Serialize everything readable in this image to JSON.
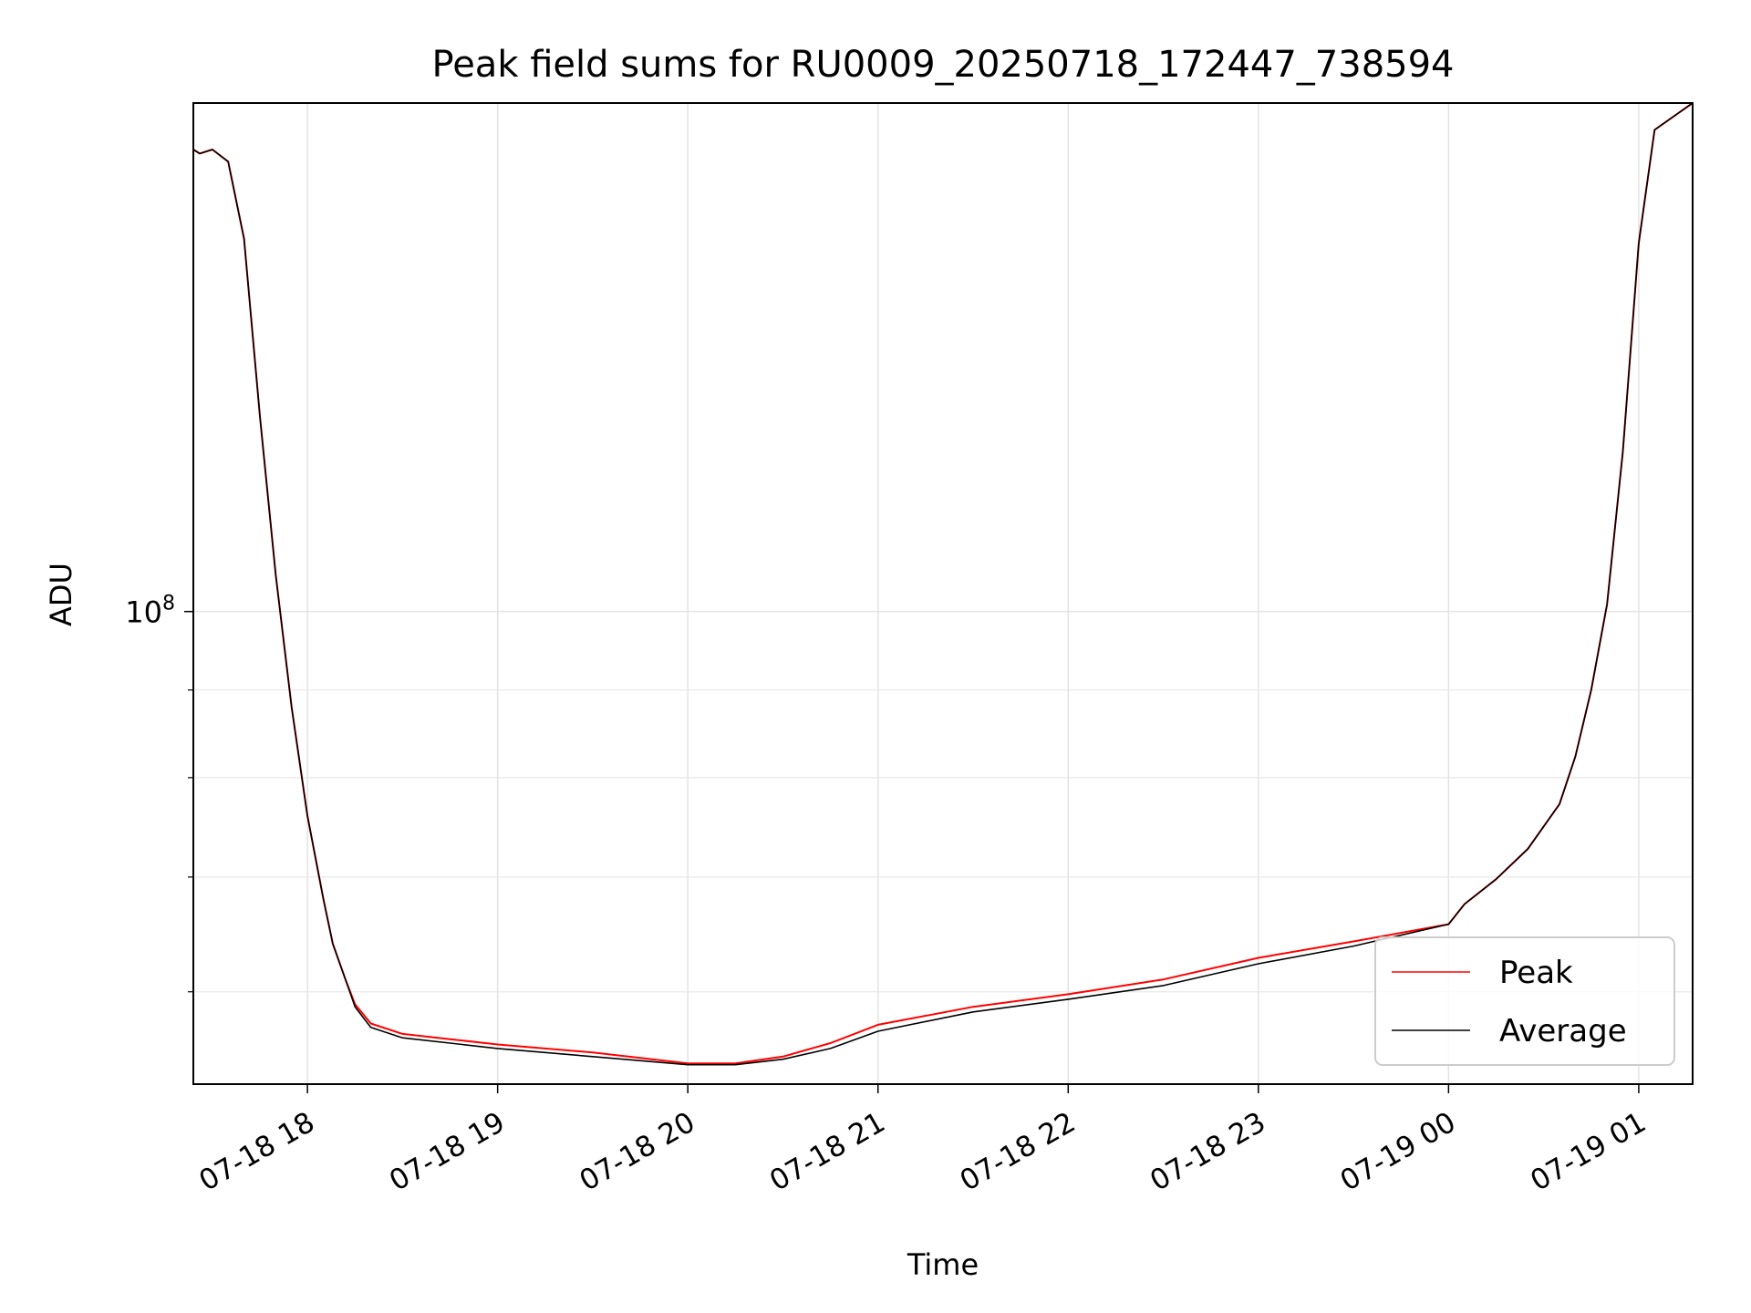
{
  "chart_data": {
    "type": "line",
    "title": "Peak field sums for RU0009_20250718_172447_738594",
    "xlabel": "Time",
    "ylabel": "ADU",
    "yscale": "log",
    "ylim": [
      53000000,
      198000000
    ],
    "xlim": [
      "2025-07-18 17:24",
      "2025-07-19 01:17"
    ],
    "grid": true,
    "legend_position": "lower-right",
    "x_ticks": [
      {
        "label": "07-18 18",
        "t": "2025-07-18 18:00"
      },
      {
        "label": "07-18 19",
        "t": "2025-07-18 19:00"
      },
      {
        "label": "07-18 20",
        "t": "2025-07-18 20:00"
      },
      {
        "label": "07-18 21",
        "t": "2025-07-18 21:00"
      },
      {
        "label": "07-18 22",
        "t": "2025-07-18 22:00"
      },
      {
        "label": "07-18 23",
        "t": "2025-07-18 23:00"
      },
      {
        "label": "07-19 00",
        "t": "2025-07-19 00:00"
      },
      {
        "label": "07-19 01",
        "t": "2025-07-19 01:00"
      }
    ],
    "y_ticks": [
      {
        "base": "10",
        "exp": "8",
        "value": 100000000
      }
    ],
    "y_minor_ticks": [
      60000000,
      70000000,
      80000000,
      90000000,
      200000000
    ],
    "series": [
      {
        "name": "Peak",
        "color": "#ff0000",
        "x": [
          "2025-07-18 17:24",
          "2025-07-18 17:26",
          "2025-07-18 17:30",
          "2025-07-18 17:35",
          "2025-07-18 17:40",
          "2025-07-18 17:45",
          "2025-07-18 17:50",
          "2025-07-18 17:55",
          "2025-07-18 18:00",
          "2025-07-18 18:05",
          "2025-07-18 18:08",
          "2025-07-18 18:12",
          "2025-07-18 18:15",
          "2025-07-18 18:20",
          "2025-07-18 18:30",
          "2025-07-18 18:45",
          "2025-07-18 19:00",
          "2025-07-18 19:30",
          "2025-07-18 20:00",
          "2025-07-18 20:15",
          "2025-07-18 20:30",
          "2025-07-18 20:45",
          "2025-07-18 21:00",
          "2025-07-18 21:30",
          "2025-07-18 22:00",
          "2025-07-18 22:30",
          "2025-07-18 23:00",
          "2025-07-18 23:30",
          "2025-07-19 00:00",
          "2025-07-19 00:05",
          "2025-07-19 00:15",
          "2025-07-19 00:25",
          "2025-07-19 00:35",
          "2025-07-19 00:40",
          "2025-07-19 00:45",
          "2025-07-19 00:50",
          "2025-07-19 00:55",
          "2025-07-19 01:00",
          "2025-07-19 01:05",
          "2025-07-19 01:17"
        ],
        "values": [
          186000000,
          185000000,
          186000000,
          183000000,
          165000000,
          130000000,
          105000000,
          88000000,
          76000000,
          68000000,
          64000000,
          61000000,
          59000000,
          57500000,
          56700000,
          56300000,
          55900000,
          55300000,
          54500000,
          54500000,
          55000000,
          56000000,
          57400000,
          58800000,
          59800000,
          61000000,
          62800000,
          64200000,
          65700000,
          67500000,
          69800000,
          72700000,
          77200000,
          82300000,
          90000000,
          101000000,
          124000000,
          164000000,
          191000000,
          198000000
        ]
      },
      {
        "name": "Average",
        "color": "#000000",
        "x": [
          "2025-07-18 17:24",
          "2025-07-18 17:26",
          "2025-07-18 17:30",
          "2025-07-18 17:35",
          "2025-07-18 17:40",
          "2025-07-18 17:45",
          "2025-07-18 17:50",
          "2025-07-18 17:55",
          "2025-07-18 18:00",
          "2025-07-18 18:05",
          "2025-07-18 18:08",
          "2025-07-18 18:12",
          "2025-07-18 18:15",
          "2025-07-18 18:20",
          "2025-07-18 18:30",
          "2025-07-18 18:45",
          "2025-07-18 19:00",
          "2025-07-18 19:30",
          "2025-07-18 20:00",
          "2025-07-18 20:15",
          "2025-07-18 20:30",
          "2025-07-18 20:45",
          "2025-07-18 21:00",
          "2025-07-18 21:30",
          "2025-07-18 22:00",
          "2025-07-18 22:30",
          "2025-07-18 23:00",
          "2025-07-18 23:30",
          "2025-07-19 00:00",
          "2025-07-19 00:05",
          "2025-07-19 00:15",
          "2025-07-19 00:25",
          "2025-07-19 00:35",
          "2025-07-19 00:40",
          "2025-07-19 00:45",
          "2025-07-19 00:50",
          "2025-07-19 00:55",
          "2025-07-19 01:00",
          "2025-07-19 01:05",
          "2025-07-19 01:17"
        ],
        "values": [
          186000000,
          185000000,
          186000000,
          183000000,
          165000000,
          130000000,
          105000000,
          88000000,
          76000000,
          68000000,
          64000000,
          61000000,
          58800000,
          57200000,
          56400000,
          56000000,
          55600000,
          55000000,
          54400000,
          54400000,
          54800000,
          55600000,
          56900000,
          58400000,
          59400000,
          60500000,
          62300000,
          63800000,
          65700000,
          67500000,
          69800000,
          72700000,
          77200000,
          82300000,
          90000000,
          101000000,
          124000000,
          164000000,
          191000000,
          198000000
        ]
      }
    ]
  }
}
